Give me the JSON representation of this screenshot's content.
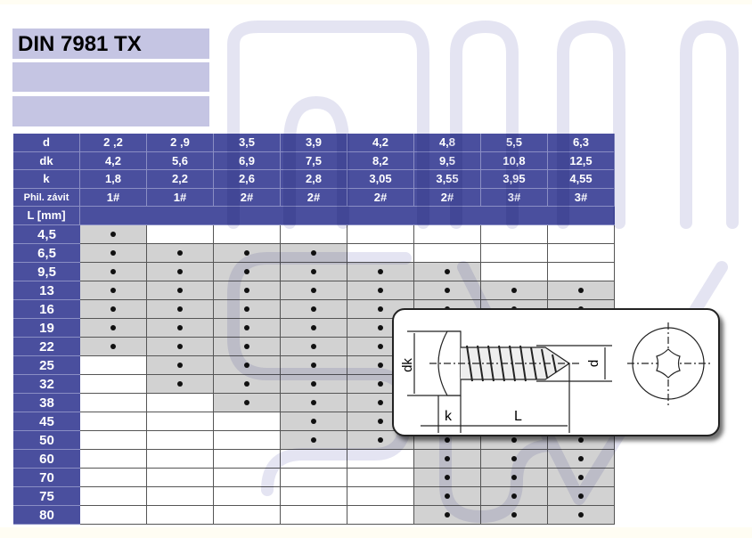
{
  "title": "DIN 7981 TX",
  "colors": {
    "header_bg": "#4a4f9e",
    "title_bg": "#c5c5e3",
    "available_cell": "#d2d2d2",
    "watermark": "#e4e4f2"
  },
  "header_rows": [
    {
      "label": "d",
      "values": [
        "2 ,2",
        "2 ,9",
        "3,5",
        "3,9",
        "4,2",
        "4,8",
        "5,5",
        "6,3"
      ]
    },
    {
      "label": "dk",
      "values": [
        "4,2",
        "5,6",
        "6,9",
        "7,5",
        "8,2",
        "9,5",
        "10,8",
        "12,5"
      ]
    },
    {
      "label": "k",
      "values": [
        "1,8",
        "2,2",
        "2,6",
        "2,8",
        "3,05",
        "3,55",
        "3,95",
        "4,55"
      ]
    },
    {
      "label": "Phil. závit",
      "values": [
        "1#",
        "1#",
        "2#",
        "2#",
        "2#",
        "2#",
        "3#",
        "3#"
      ]
    }
  ],
  "length_label": "L [mm]",
  "length_rows": [
    {
      "L": "4,5",
      "fits": [
        true,
        false,
        false,
        false,
        false,
        false,
        false,
        false
      ]
    },
    {
      "L": "6,5",
      "fits": [
        true,
        true,
        true,
        true,
        false,
        false,
        false,
        false
      ]
    },
    {
      "L": "9,5",
      "fits": [
        true,
        true,
        true,
        true,
        true,
        true,
        false,
        false
      ]
    },
    {
      "L": "13",
      "fits": [
        true,
        true,
        true,
        true,
        true,
        true,
        true,
        true
      ]
    },
    {
      "L": "16",
      "fits": [
        true,
        true,
        true,
        true,
        true,
        true,
        true,
        true
      ]
    },
    {
      "L": "19",
      "fits": [
        true,
        true,
        true,
        true,
        true,
        true,
        true,
        true
      ]
    },
    {
      "L": "22",
      "fits": [
        true,
        true,
        true,
        true,
        true,
        true,
        true,
        true
      ]
    },
    {
      "L": "25",
      "fits": [
        false,
        true,
        true,
        true,
        true,
        true,
        true,
        true
      ]
    },
    {
      "L": "32",
      "fits": [
        false,
        true,
        true,
        true,
        true,
        true,
        true,
        true
      ]
    },
    {
      "L": "38",
      "fits": [
        false,
        false,
        true,
        true,
        true,
        true,
        true,
        true
      ]
    },
    {
      "L": "45",
      "fits": [
        false,
        false,
        false,
        true,
        true,
        true,
        true,
        true
      ]
    },
    {
      "L": "50",
      "fits": [
        false,
        false,
        false,
        true,
        true,
        true,
        true,
        true
      ]
    },
    {
      "L": "60",
      "fits": [
        false,
        false,
        false,
        false,
        false,
        true,
        true,
        true
      ]
    },
    {
      "L": "70",
      "fits": [
        false,
        false,
        false,
        false,
        false,
        true,
        true,
        true
      ]
    },
    {
      "L": "75",
      "fits": [
        false,
        false,
        false,
        false,
        false,
        true,
        true,
        true
      ]
    },
    {
      "L": "80",
      "fits": [
        false,
        false,
        false,
        false,
        false,
        true,
        true,
        true
      ]
    }
  ],
  "drawing": {
    "dk_label": "dk",
    "d_label": "d",
    "k_label": "k",
    "L_label": "L"
  }
}
